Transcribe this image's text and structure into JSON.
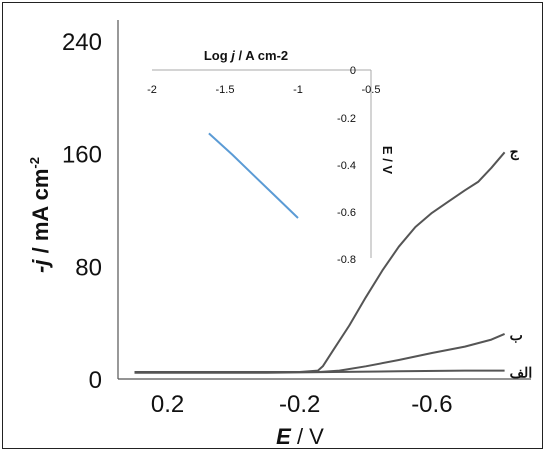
{
  "chart_data": [
    {
      "type": "line",
      "xlabel": "E / V",
      "xlabel_parts": [
        "E",
        " / V"
      ],
      "ylabel": "-j / mA cm-2",
      "ylabel_parts": [
        "-j",
        " / mA cm",
        "-2"
      ],
      "xlim": [
        0.35,
        -0.9
      ],
      "ylim": [
        0,
        255
      ],
      "xticks": [
        0.2,
        -0.2,
        -0.6
      ],
      "xtick_labels": [
        "0.2",
        "-0.2",
        "-0.6"
      ],
      "yticks": [
        0,
        80,
        160,
        240
      ],
      "ytick_labels": [
        "0",
        "80",
        "160",
        "240"
      ],
      "grid": false,
      "legend": "none",
      "line_color": "#555555",
      "series": [
        {
          "name": "الف",
          "x": [
            0.3,
            0.1,
            -0.1,
            -0.3,
            -0.5,
            -0.7,
            -0.82
          ],
          "y": [
            4.5,
            4.5,
            4.5,
            5.0,
            5.5,
            6.0,
            6.0
          ]
        },
        {
          "name": "ب",
          "x": [
            0.3,
            0.0,
            -0.2,
            -0.26,
            -0.32,
            -0.4,
            -0.5,
            -0.6,
            -0.7,
            -0.78,
            -0.82
          ],
          "y": [
            5.0,
            5.0,
            5.0,
            5.0,
            6.0,
            9.0,
            13.5,
            18.5,
            23.0,
            28.0,
            32.0
          ]
        },
        {
          "name": "ج",
          "x": [
            0.3,
            0.0,
            -0.2,
            -0.255,
            -0.27,
            -0.3,
            -0.35,
            -0.4,
            -0.45,
            -0.5,
            -0.55,
            -0.6,
            -0.65,
            -0.7,
            -0.74,
            -0.78,
            -0.82
          ],
          "y": [
            5.0,
            5.0,
            5.0,
            6.0,
            9.0,
            20.0,
            38.0,
            58.0,
            77.0,
            94.0,
            108.0,
            118.0,
            126.0,
            134.0,
            140.0,
            150.0,
            161.0
          ]
        }
      ]
    },
    {
      "type": "line",
      "role": "inset",
      "xlabel": "Log j / A cm-2",
      "xlabel_parts": [
        "Log ",
        "j",
        " / A cm-2"
      ],
      "ylabel": "E / V",
      "xlim": [
        -2,
        -0.5
      ],
      "ylim": [
        -0.8,
        0
      ],
      "xticks": [
        -2,
        -1.5,
        -1,
        -0.5
      ],
      "xtick_labels": [
        "-2",
        "-1.5",
        "-1",
        "-0.5"
      ],
      "yticks": [
        0,
        -0.2,
        -0.4,
        -0.6,
        -0.8
      ],
      "ytick_labels": [
        "0",
        "-0.2",
        "-0.4",
        "-0.6",
        "-0.8"
      ],
      "grid": false,
      "legend": "none",
      "series": [
        {
          "color": "#5b9bd5",
          "x": [
            -1.61,
            -1.45,
            -1.3,
            -1.15,
            -1.0
          ],
          "y": [
            -0.27,
            -0.36,
            -0.45,
            -0.54,
            -0.63
          ]
        }
      ]
    }
  ]
}
